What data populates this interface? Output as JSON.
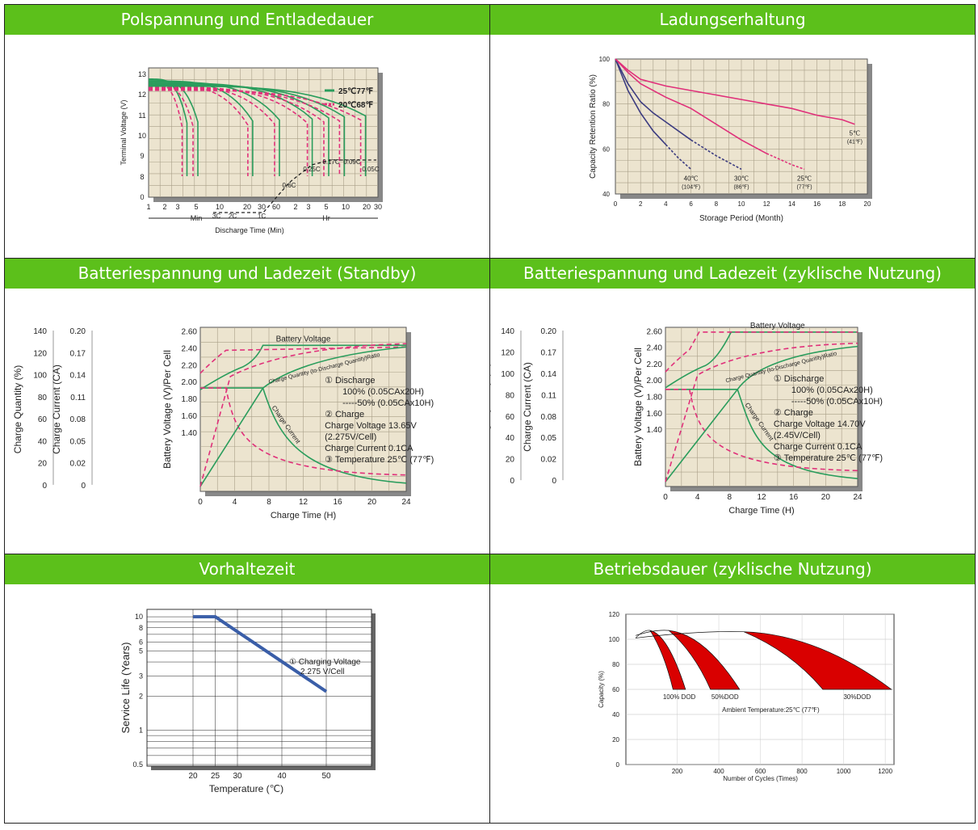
{
  "headers": {
    "h1": "Polspannung und Entladedauer",
    "h2": "Ladungserhaltung",
    "h3": "Batteriespannung und Ladezeit (Standby)",
    "h4": "Batteriespannung und Ladezeit (zyklische Nutzung)",
    "h5": "Vorhaltezeit",
    "h6": "Betriebsdauer (zyklische Nutzung)"
  },
  "colors": {
    "header_bg": "#5cc01b",
    "green_curve": "#2a9d5c",
    "pink_curve": "#e0307a",
    "blue_curve": "#3c3c80",
    "chart_bg": "#ece4cf",
    "red_fill": "#d90000"
  },
  "chart_data": [
    {
      "type": "line",
      "title": "Polspannung und Entladedauer",
      "xlabel": "Discharge Time (Min)",
      "ylabel": "Terminal Voltage (V)",
      "y_ticks": [
        "0",
        "8",
        "9",
        "10",
        "11",
        "12",
        "13"
      ],
      "x_ticks": [
        "1",
        "2",
        "3",
        "5",
        "10",
        "20",
        "30",
        "60",
        "2",
        "3",
        "5",
        "10",
        "20",
        "30"
      ],
      "x_units": [
        "Min",
        "Hr"
      ],
      "legend": [
        "25℃77℉",
        "20℃68℉"
      ],
      "rate_labels": [
        "3C",
        "2C",
        "1C",
        "0.6C",
        "0.25C",
        "0.17C",
        "0.09C",
        "0.05C"
      ],
      "series": [
        {
          "name": "3C",
          "end_min": 3.5
        },
        {
          "name": "2C",
          "end_min": 5
        },
        {
          "name": "1C",
          "end_min": 30
        },
        {
          "name": "0.6C",
          "end_min": 72
        },
        {
          "name": "0.25C",
          "end_min": 210
        },
        {
          "name": "0.17C",
          "end_min": 360
        },
        {
          "name": "0.09C",
          "end_min": 600
        },
        {
          "name": "0.05C",
          "end_min": 1200
        }
      ]
    },
    {
      "type": "line",
      "title": "Ladungserhaltung",
      "xlabel": "Storage Period (Month)",
      "ylabel": "Capacity Retention Ratio (%)",
      "xlim": [
        0,
        20
      ],
      "ylim": [
        40,
        100
      ],
      "x_ticks": [
        "0",
        "2",
        "4",
        "6",
        "8",
        "10",
        "12",
        "14",
        "16",
        "18",
        "20"
      ],
      "y_ticks": [
        "40",
        "60",
        "80",
        "100"
      ],
      "series": [
        {
          "name": "40℃ (104℉)",
          "x": [
            0,
            1,
            2,
            3,
            4,
            5,
            6
          ],
          "y": [
            100,
            86,
            76,
            68,
            62,
            56,
            51
          ]
        },
        {
          "name": "30℃ (86℉)",
          "x": [
            0,
            1,
            2,
            3,
            4,
            6,
            8,
            10
          ],
          "y": [
            100,
            89,
            81,
            76,
            72,
            64,
            57,
            51
          ]
        },
        {
          "name": "25℃ (77℉)",
          "x": [
            0,
            1,
            2,
            4,
            6,
            8,
            10,
            12,
            14,
            15
          ],
          "y": [
            100,
            94,
            89,
            83,
            78,
            71,
            64,
            58,
            53,
            51
          ]
        },
        {
          "name": "5℃ (41℉)",
          "x": [
            0,
            1,
            2,
            4,
            6,
            8,
            10,
            12,
            14,
            16,
            18,
            19
          ],
          "y": [
            100,
            95,
            91,
            88,
            86,
            84,
            82,
            80,
            78,
            75,
            73,
            71
          ]
        }
      ]
    },
    {
      "type": "line",
      "title": "Batteriespannung und Ladezeit (Standby)",
      "xlabel": "Charge Time (H)",
      "x_ticks": [
        "0",
        "4",
        "8",
        "12",
        "16",
        "20",
        "24"
      ],
      "axis1_label": "Charge Quantity (%)",
      "axis1_ticks": [
        "0",
        "20",
        "40",
        "60",
        "80",
        "100",
        "120",
        "140"
      ],
      "axis2_label": "Charge Current (CA)",
      "axis2_ticks": [
        "0",
        "0.02",
        "0.05",
        "0.08",
        "0.11",
        "0.14",
        "0.17",
        "0.20"
      ],
      "axis3_label": "Battery Voltage (V)/Per Cell",
      "axis3_ticks": [
        "1.40",
        "1.60",
        "1.80",
        "2.00",
        "2.20",
        "2.40",
        "2.60"
      ],
      "curve_labels": [
        "Battery Voltage",
        "Charge Quantity (to-Discharge Quantity)Ratio",
        "Charge Current"
      ],
      "notes": [
        "① Discharge",
        "100% (0.05CAx20H)",
        "-----50% (0.05CAx10H)",
        "② Charge",
        "Charge Voltage 13.65V",
        "(2.275V/Cell)",
        "Charge Current 0.1CA",
        "③ Temperature 25℃ (77℉)"
      ]
    },
    {
      "type": "line",
      "title": "Batteriespannung und Ladezeit (zyklische Nutzung)",
      "xlabel": "Charge Time (H)",
      "x_ticks": [
        "0",
        "4",
        "8",
        "12",
        "16",
        "20",
        "24"
      ],
      "axis1_label": "Charge Quantity (%)",
      "axis1_ticks": [
        "0",
        "20",
        "40",
        "60",
        "80",
        "100",
        "120",
        "140"
      ],
      "axis2_label": "Charge Current (CA)",
      "axis2_ticks": [
        "0",
        "0.02",
        "0.05",
        "0.08",
        "0.11",
        "0.14",
        "0.17",
        "0.20"
      ],
      "axis3_label": "Battery Voltage (V)/Per Cell",
      "axis3_ticks": [
        "1.40",
        "1.60",
        "1.80",
        "2.00",
        "2.20",
        "2.40",
        "2.60"
      ],
      "curve_labels": [
        "Battery Voltage",
        "Charge Quantity (to-Discharge Quantity)Ratio",
        "Charge Current"
      ],
      "notes": [
        "① Discharge",
        "100% (0.05CAx20H)",
        "-----50% (0.05CAx10H)",
        "② Charge",
        "Charge Voltage 14.70V",
        "(2.45V/Cell)",
        "Charge Current 0.1CA",
        "③ Temperature 25℃ (77℉)"
      ]
    },
    {
      "type": "line",
      "title": "Vorhaltezeit",
      "xlabel": "Temperature (℃)",
      "ylabel": "Service Life (Years)",
      "y_scale": "log",
      "x_ticks": [
        "20",
        "25",
        "30",
        "40",
        "50"
      ],
      "y_ticks": [
        "0.5",
        "1",
        "2",
        "3",
        "5",
        "6",
        "8",
        "10"
      ],
      "annotation": [
        "① Charging Voltage",
        "2.275 V/Cell"
      ],
      "series": [
        {
          "name": "",
          "x": [
            20,
            25,
            50
          ],
          "y": [
            10,
            10,
            2.2
          ]
        }
      ]
    },
    {
      "type": "area",
      "title": "Betriebsdauer (zyklische Nutzung)",
      "xlabel": "Number of Cycles (Times)",
      "ylabel": "Capacity (%)",
      "xlim": [
        0,
        1200
      ],
      "ylim": [
        0,
        120
      ],
      "x_ticks": [
        "200",
        "400",
        "600",
        "800",
        "1000",
        "1200"
      ],
      "y_ticks": [
        "0",
        "20",
        "40",
        "60",
        "80",
        "100",
        "120"
      ],
      "annotation": "Ambient Temperature:25℃ (77℉)",
      "series": [
        {
          "name": "100% DOD",
          "end_cycles": [
            180,
            240
          ]
        },
        {
          "name": "50%DOD",
          "end_cycles": [
            360,
            500
          ]
        },
        {
          "name": "30%DOD",
          "end_cycles": [
            900,
            1230
          ]
        }
      ]
    }
  ]
}
